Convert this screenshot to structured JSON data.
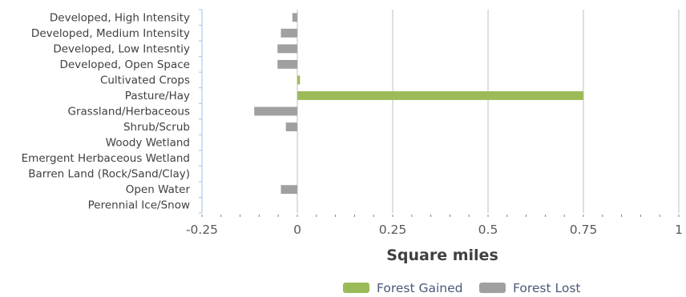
{
  "chart_data": {
    "type": "bar",
    "orientation": "horizontal",
    "categories": [
      "Developed, High Intensity",
      "Developed, Medium Intensity",
      "Developed, Low Intesntiy",
      "Developed, Open Space",
      "Cultivated Crops",
      "Pasture/Hay",
      "Grassland/Herbaceous",
      "Shrub/Scrub",
      "Woody Wetland",
      "Emergent Herbaceous Wetland",
      "Barren Land (Rock/Sand/Clay)",
      "Open Water",
      "Perennial Ice/Snow"
    ],
    "series": [
      {
        "name": "Forest Gained",
        "color": "#9bbb59",
        "values": [
          0,
          0,
          0,
          0,
          0.007,
          0.75,
          0,
          0,
          0,
          0,
          0,
          0,
          0
        ]
      },
      {
        "name": "Forest Lost",
        "color": "#a0a0a0",
        "values": [
          -0.013,
          -0.043,
          -0.052,
          -0.052,
          0,
          0,
          -0.113,
          -0.03,
          0,
          0,
          0,
          -0.043,
          0
        ]
      }
    ],
    "xlim": [
      -0.25,
      1
    ],
    "x_ticks": [
      -0.25,
      0,
      0.25,
      0.5,
      0.75,
      1
    ],
    "x_tick_labels": [
      "-0.25",
      "0",
      "0.25",
      "0.5",
      "0.75",
      "1"
    ],
    "xlabel": "Square miles",
    "grid": "vertical major gridlines",
    "legend_position": "bottom"
  }
}
